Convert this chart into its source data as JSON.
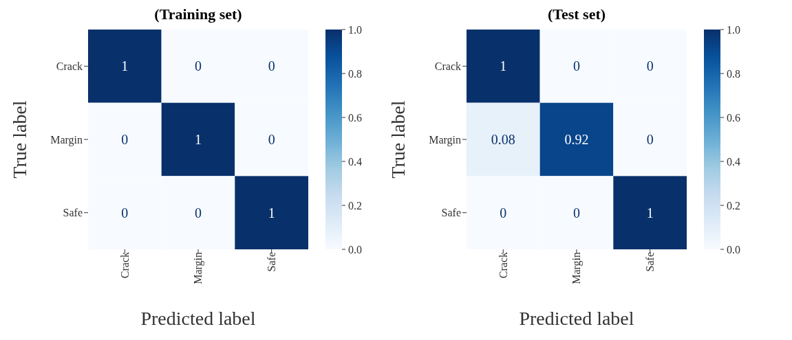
{
  "chart_data": [
    {
      "type": "heatmap",
      "title": "(Training set)",
      "xlabel": "Predicted label",
      "ylabel": "True label",
      "categories": [
        "Crack",
        "Margin",
        "Safe"
      ],
      "y_categories": [
        "Crack",
        "Margin",
        "Safe"
      ],
      "cells": [
        [
          1,
          0,
          0
        ],
        [
          0,
          1,
          0
        ],
        [
          0,
          0,
          1
        ]
      ],
      "data_labels": true,
      "clim": [
        0,
        1
      ],
      "cticks": [
        {
          "value": 0,
          "label": "0.0"
        },
        {
          "value": 0.2,
          "label": "0.2"
        },
        {
          "value": 0.4,
          "label": "0.4"
        },
        {
          "value": 0.6,
          "label": "0.6"
        },
        {
          "value": 0.8,
          "label": "0.8"
        },
        {
          "value": 1,
          "label": "1.0"
        }
      ]
    },
    {
      "type": "heatmap",
      "title": "(Test set)",
      "xlabel": "Predicted label",
      "ylabel": "True label",
      "categories": [
        "Crack",
        "Margin",
        "Safe"
      ],
      "y_categories": [
        "Crack",
        "Margin",
        "Safe"
      ],
      "cells": [
        [
          1,
          0,
          0
        ],
        [
          0.08,
          0.92,
          0
        ],
        [
          0,
          0,
          1
        ]
      ],
      "data_labels": true,
      "clim": [
        0,
        1
      ],
      "cticks": [
        {
          "value": 0,
          "label": "0.0"
        },
        {
          "value": 0.2,
          "label": "0.2"
        },
        {
          "value": 0.4,
          "label": "0.4"
        },
        {
          "value": 0.6,
          "label": "0.6"
        },
        {
          "value": 0.8,
          "label": "0.8"
        },
        {
          "value": 1,
          "label": "1.0"
        }
      ]
    }
  ]
}
